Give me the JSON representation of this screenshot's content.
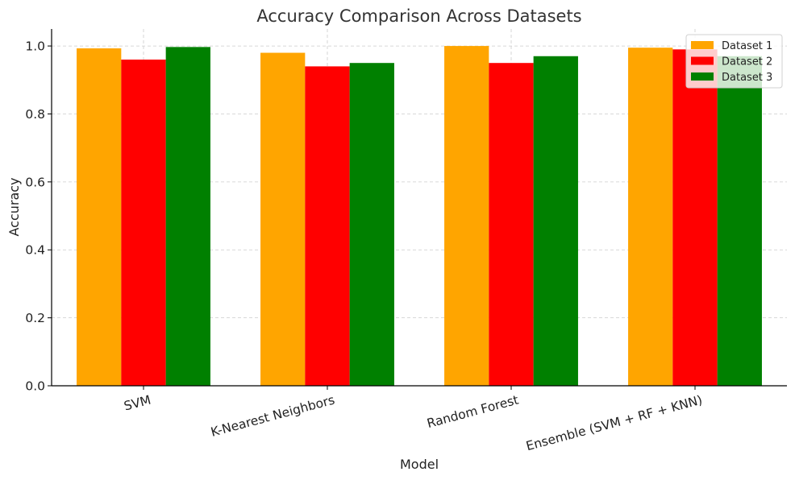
{
  "chart_data": {
    "type": "bar",
    "title": "Accuracy Comparison Across Datasets",
    "xlabel": "Model",
    "ylabel": "Accuracy",
    "categories": [
      "SVM",
      "K-Nearest Neighbors",
      "Random Forest",
      "Ensemble (SVM + RF + KNN)"
    ],
    "series": [
      {
        "name": "Dataset 1",
        "color": "#FFA500",
        "values": [
          0.993,
          0.98,
          1.0,
          0.995
        ]
      },
      {
        "name": "Dataset 2",
        "color": "#FF0000",
        "values": [
          0.96,
          0.94,
          0.95,
          0.99
        ]
      },
      {
        "name": "Dataset 3",
        "color": "#008000",
        "values": [
          0.997,
          0.95,
          0.97,
          0.97
        ]
      }
    ],
    "ylim": [
      0,
      1.05
    ],
    "yticks": [
      "0.0",
      "0.2",
      "0.4",
      "0.6",
      "0.8",
      "1.0"
    ],
    "grid": true,
    "legend_position": "top-right"
  }
}
